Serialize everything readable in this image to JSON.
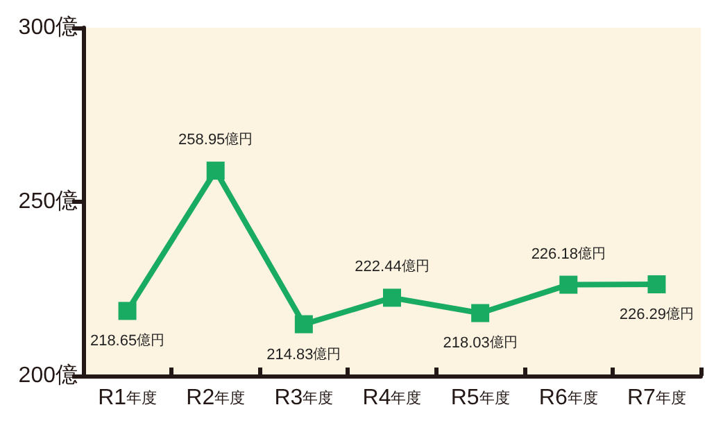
{
  "chart_data": {
    "type": "line",
    "categories": [
      "R1年度",
      "R2年度",
      "R3年度",
      "R4年度",
      "R5年度",
      "R6年度",
      "R7年度"
    ],
    "series": [
      {
        "color": "#1aab62",
        "values": [
          218.65,
          258.95,
          214.83,
          222.44,
          218.03,
          226.18,
          226.29
        ],
        "value_labels": [
          "218.65億円",
          "258.95億円",
          "214.83億円",
          "222.44億円",
          "218.03億円",
          "226.18億円",
          "226.29億円"
        ]
      }
    ],
    "ylim": [
      200,
      300
    ],
    "yticks": [
      {
        "value": 200,
        "label": "200億"
      },
      {
        "value": 250,
        "label": "250億"
      },
      {
        "value": 300,
        "label": "300億"
      }
    ],
    "grid": false,
    "marker": "square",
    "line_style": "solid"
  }
}
